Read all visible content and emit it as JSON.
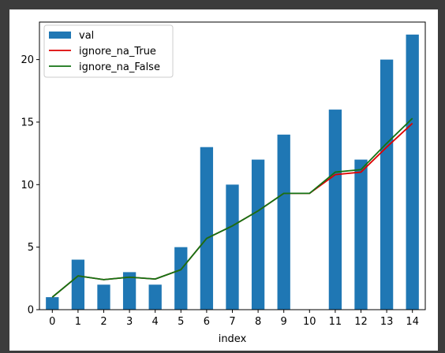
{
  "colors": {
    "background": "#3c3c3c",
    "figure": "#ffffff",
    "bar": "#1f77b4",
    "ignore_na_true": "#dd0000",
    "ignore_na_false": "#137313"
  },
  "chart_data": {
    "type": "bar",
    "title": "",
    "xlabel": "index",
    "ylabel": "",
    "categories": [
      "0",
      "1",
      "2",
      "3",
      "4",
      "5",
      "6",
      "7",
      "8",
      "9",
      "10",
      "11",
      "12",
      "13",
      "14"
    ],
    "ylim": [
      0,
      23
    ],
    "yticks": [
      0,
      5,
      10,
      15,
      20
    ],
    "grid": false,
    "legend_position": "top-left",
    "series": [
      {
        "name": "val",
        "kind": "bar",
        "color": "#1f77b4",
        "values": [
          1,
          4,
          2,
          3,
          2,
          5,
          13,
          10,
          12,
          14,
          null,
          16,
          12,
          20,
          22
        ]
      },
      {
        "name": "ignore_na_True",
        "kind": "line",
        "color": "#dd0000",
        "values": [
          1.0,
          2.7,
          2.4,
          2.6,
          2.45,
          3.2,
          5.7,
          6.7,
          7.9,
          9.3,
          9.3,
          10.8,
          11.0,
          13.0,
          14.9
        ]
      },
      {
        "name": "ignore_na_False",
        "kind": "line",
        "color": "#137313",
        "values": [
          1.0,
          2.7,
          2.4,
          2.6,
          2.45,
          3.2,
          5.7,
          6.7,
          7.9,
          9.3,
          9.3,
          11.0,
          11.2,
          13.3,
          15.3
        ]
      }
    ]
  }
}
